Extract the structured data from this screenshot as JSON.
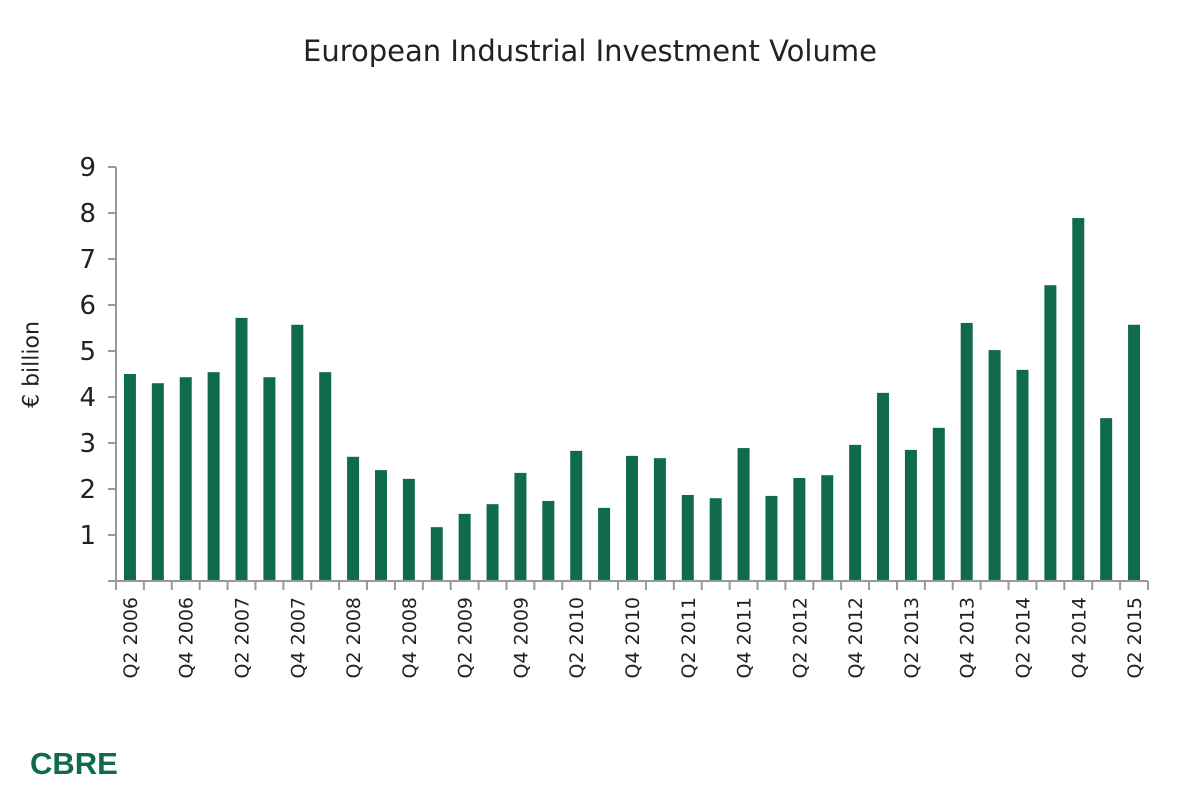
{
  "chart_data": {
    "type": "bar",
    "title": "European Industrial Investment Volume",
    "xlabel": "",
    "ylabel": "€ billion",
    "ylim": [
      0,
      9
    ],
    "yticks": [
      1,
      2,
      3,
      4,
      5,
      6,
      7,
      8,
      9
    ],
    "grid": false,
    "bar_color": "#0f6b4c",
    "categories": [
      "Q2 2006",
      "Q3 2006",
      "Q4 2006",
      "Q1 2007",
      "Q2 2007",
      "Q3 2007",
      "Q4 2007",
      "Q1 2008",
      "Q2 2008",
      "Q3 2008",
      "Q4 2008",
      "Q1 2009",
      "Q2 2009",
      "Q3 2009",
      "Q4 2009",
      "Q1 2010",
      "Q2 2010",
      "Q3 2010",
      "Q4 2010",
      "Q1 2011",
      "Q2 2011",
      "Q3 2011",
      "Q4 2011",
      "Q1 2012",
      "Q2 2012",
      "Q3 2012",
      "Q4 2012",
      "Q1 2013",
      "Q2 2013",
      "Q3 2013",
      "Q4 2013",
      "Q1 2014",
      "Q2 2014",
      "Q3 2014",
      "Q4 2014",
      "Q1 2015",
      "Q2 2015"
    ],
    "tick_labels_shown": [
      "Q2 2006",
      "Q4 2006",
      "Q2 2007",
      "Q4 2007",
      "Q2 2008",
      "Q4 2008",
      "Q2 2009",
      "Q4 2009",
      "Q2 2010",
      "Q4 2010",
      "Q2 2011",
      "Q4 2011",
      "Q2 2012",
      "Q4 2012",
      "Q2 2013",
      "Q4 2013",
      "Q2 2014",
      "Q4 2014",
      "Q2 2015"
    ],
    "values": [
      4.5,
      4.3,
      4.43,
      4.54,
      5.72,
      4.43,
      5.57,
      4.54,
      2.7,
      2.41,
      2.22,
      1.17,
      1.46,
      1.67,
      2.35,
      1.74,
      2.83,
      1.59,
      2.72,
      2.67,
      1.87,
      1.8,
      2.89,
      1.85,
      2.24,
      2.3,
      2.96,
      4.09,
      2.85,
      3.33,
      5.61,
      5.02,
      4.59,
      6.43,
      7.89,
      3.54,
      5.57
    ]
  },
  "logo": "CBRE"
}
